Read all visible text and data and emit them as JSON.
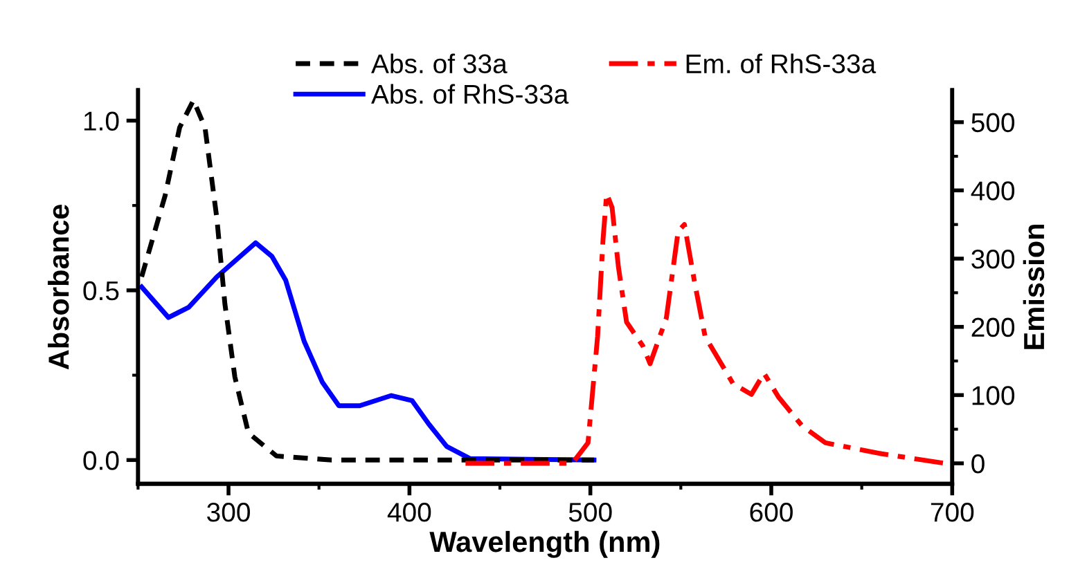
{
  "chart_data": {
    "type": "line",
    "xlabel": "Wavelength (nm)",
    "ylabel": "Absorbance",
    "y2label": "Emission",
    "xlim": [
      250,
      700
    ],
    "xticks": [
      300,
      400,
      500,
      600,
      700
    ],
    "ylim": [
      -0.07,
      1.09
    ],
    "yticks": [
      {
        "value": 0,
        "label": "0.0"
      },
      0.5,
      {
        "value": 1,
        "label": "1.0"
      }
    ],
    "y2lim": [
      -30,
      547
    ],
    "y2ticks": [
      0,
      100,
      200,
      300,
      400,
      500
    ],
    "grid": false,
    "legend": "top",
    "marker": "none",
    "series": [
      {
        "name": "Abs. of 33a",
        "color": "#000000",
        "line_style": "dashed",
        "x": [
          252,
          265,
          273,
          280.6,
          287,
          293.6,
          298,
          303.5,
          311,
          326.5,
          357,
          502
        ],
        "values": [
          0.54,
          0.78,
          0.98,
          1.06,
          0.98,
          0.71,
          0.46,
          0.245,
          0.08,
          0.012,
          0,
          0
        ]
      },
      {
        "name": "Abs. of RhS-33a",
        "color": "#0000ff",
        "line_style": "solid",
        "x": [
          252,
          266.8,
          278,
          293.6,
          315,
          324,
          331.6,
          341.8,
          351.8,
          361,
          372.5,
          390,
          401.5,
          410.7,
          420.6,
          433.6,
          502
        ],
        "values": [
          0.51,
          0.42,
          0.45,
          0.54,
          0.64,
          0.6,
          0.53,
          0.35,
          0.23,
          0.16,
          0.16,
          0.19,
          0.175,
          0.106,
          0.04,
          0.004,
          0
        ]
      },
      {
        "name": "Em. of RhS-33a",
        "color": "#ff0000",
        "line_style": "dashdot",
        "axis": "y2",
        "x": [
          431,
          490,
          498.7,
          504,
          507,
          509,
          512,
          515.5,
          520,
          529,
          533,
          542,
          548.5,
          552,
          557.5,
          563.4,
          578.8,
          589,
          596,
          604,
          617,
          630,
          661,
          696
        ],
        "values": [
          0,
          0,
          30,
          186,
          328,
          395,
          375,
          288,
          207,
          172,
          146,
          213,
          340,
          350,
          267,
          186,
          117,
          101,
          132,
          97,
          55,
          30,
          14,
          0
        ]
      }
    ]
  }
}
